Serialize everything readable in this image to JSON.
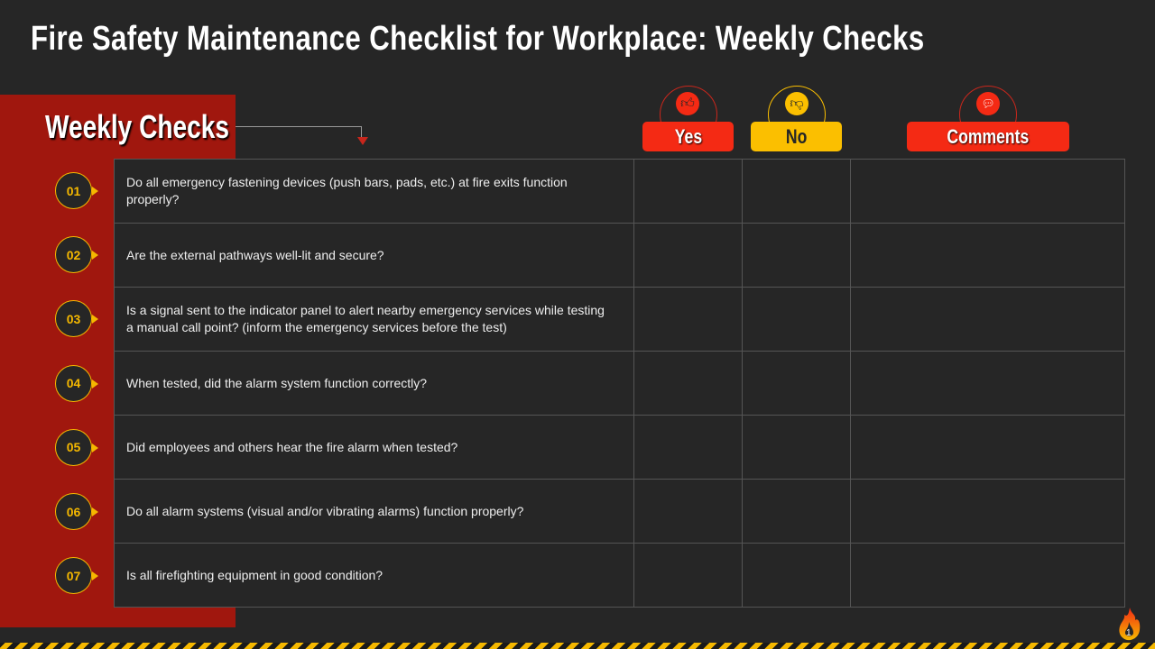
{
  "title": "Fire Safety Maintenance Checklist for Workplace: Weekly Checks",
  "section_label": "Weekly Checks",
  "columns": {
    "yes": "Yes",
    "no": "No",
    "comments": "Comments"
  },
  "icons": {
    "yes": "thumbs-up-icon",
    "no": "thumbs-down-icon",
    "comments": "chat-bubble-icon"
  },
  "colors": {
    "red": "#f42a14",
    "yellow": "#fbbf00",
    "panel": "#a0170e",
    "background": "#262626"
  },
  "items": [
    {
      "num": "01",
      "question": "Do all emergency fastening devices (push bars, pads, etc.) at fire exits function properly?"
    },
    {
      "num": "02",
      "question": "Are the external pathways well-lit and secure?"
    },
    {
      "num": "03",
      "question": "Is a signal sent to the indicator panel to alert nearby emergency services while testing a manual call point? (inform the emergency services before the test)"
    },
    {
      "num": "04",
      "question": "When tested, did the alarm system function correctly?"
    },
    {
      "num": "05",
      "question": "Did employees and others hear the fire alarm when tested?"
    },
    {
      "num": "06",
      "question": "Do all alarm systems (visual and/or vibrating alarms) function properly?"
    },
    {
      "num": "07",
      "question": "Is all firefighting equipment in good condition?"
    }
  ],
  "page_number": "1"
}
